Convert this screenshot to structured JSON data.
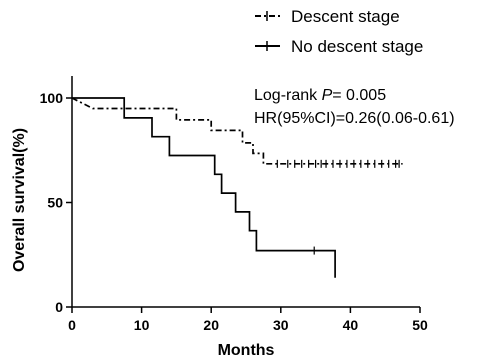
{
  "chart_data": {
    "type": "line",
    "xlabel": "Months",
    "ylabel": "Overall survival(%)",
    "xlim": [
      0,
      50
    ],
    "ylim": [
      0,
      100
    ],
    "x_ticks": [
      0,
      10,
      20,
      30,
      40,
      50
    ],
    "y_ticks": [
      0,
      50,
      100
    ],
    "legend_position": "top-right",
    "annotation": {
      "logrank_prefix": "Log-rank ",
      "logrank_p": "P",
      "logrank_value": "= 0.005",
      "hr": "HR(95%CI)=0.26(0.06-0.61)"
    },
    "series": [
      {
        "name": "Descent stage",
        "style": "dash-dot",
        "steps": [
          [
            0,
            100
          ],
          [
            3,
            95
          ],
          [
            15,
            95
          ],
          [
            15,
            89.5
          ],
          [
            20,
            89.5
          ],
          [
            20,
            84.5
          ],
          [
            24.5,
            84.5
          ],
          [
            24.5,
            78.5
          ],
          [
            26,
            78.5
          ],
          [
            26,
            73.5
          ],
          [
            27.5,
            73.5
          ],
          [
            27.5,
            68.5
          ],
          [
            47.5,
            68.5
          ]
        ],
        "censor": [
          29.5,
          31,
          32,
          33,
          34,
          35,
          35.8,
          36.5,
          37.5,
          38.5,
          39.5,
          40.5,
          41.5,
          42.5,
          43.5,
          44.5,
          45.5,
          46.5,
          47
        ]
      },
      {
        "name": "No descent stage",
        "style": "solid",
        "steps": [
          [
            0,
            100
          ],
          [
            7.5,
            100
          ],
          [
            7.5,
            90.5
          ],
          [
            11.5,
            90.5
          ],
          [
            11.5,
            81.5
          ],
          [
            14,
            81.5
          ],
          [
            14,
            72.5
          ],
          [
            20.5,
            72.5
          ],
          [
            20.5,
            63.5
          ],
          [
            21.5,
            63.5
          ],
          [
            21.5,
            54.5
          ],
          [
            23.5,
            54.5
          ],
          [
            23.5,
            45.5
          ],
          [
            25.5,
            45.5
          ],
          [
            25.5,
            36.5
          ],
          [
            26.5,
            36.5
          ],
          [
            26.5,
            27
          ],
          [
            37.8,
            27
          ],
          [
            37.8,
            14
          ]
        ],
        "censor": [
          34.8
        ]
      }
    ]
  }
}
